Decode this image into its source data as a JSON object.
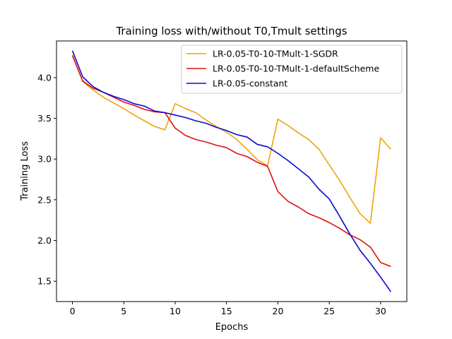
{
  "chart_data": {
    "type": "line",
    "title": "Training loss with/without T0,Tmult settings",
    "xlabel": "Epochs",
    "ylabel": "Training Loss",
    "xlim": [
      -1.55,
      32.55
    ],
    "ylim": [
      1.25,
      4.45
    ],
    "xticks": [
      0,
      5,
      10,
      15,
      20,
      25,
      30
    ],
    "yticks": [
      1.5,
      2.0,
      2.5,
      3.0,
      3.5,
      4.0
    ],
    "grid": false,
    "legend_position": "top-right",
    "x": [
      0,
      1,
      2,
      3,
      4,
      5,
      6,
      7,
      8,
      9,
      10,
      11,
      12,
      13,
      14,
      15,
      16,
      17,
      18,
      19,
      20,
      21,
      22,
      23,
      24,
      25,
      26,
      27,
      28,
      29,
      30,
      31
    ],
    "series": [
      {
        "name": "LR-0.05-T0-10-TMult-1-SGDR",
        "color": "#f0a30a",
        "values": [
          4.28,
          3.95,
          3.85,
          3.76,
          3.69,
          3.62,
          3.54,
          3.47,
          3.4,
          3.36,
          3.68,
          3.62,
          3.57,
          3.48,
          3.4,
          3.33,
          3.24,
          3.12,
          2.99,
          2.92,
          3.49,
          3.41,
          3.32,
          3.24,
          3.12,
          2.93,
          2.74,
          2.53,
          2.33,
          2.21,
          3.26,
          3.12
        ]
      },
      {
        "name": "LR-0.05-T0-10-TMult-1-defaultScheme",
        "color": "#e01010",
        "values": [
          4.27,
          3.96,
          3.87,
          3.82,
          3.76,
          3.7,
          3.66,
          3.61,
          3.58,
          3.57,
          3.38,
          3.29,
          3.24,
          3.21,
          3.17,
          3.14,
          3.07,
          3.03,
          2.96,
          2.91,
          2.6,
          2.48,
          2.41,
          2.33,
          2.28,
          2.22,
          2.15,
          2.07,
          2.01,
          1.92,
          1.73,
          1.68
        ]
      },
      {
        "name": "LR-0.05-constant",
        "color": "#0a0ad0",
        "values": [
          4.33,
          4.01,
          3.89,
          3.82,
          3.77,
          3.73,
          3.68,
          3.65,
          3.59,
          3.57,
          3.54,
          3.51,
          3.47,
          3.44,
          3.39,
          3.35,
          3.3,
          3.27,
          3.18,
          3.15,
          3.07,
          2.98,
          2.88,
          2.78,
          2.63,
          2.51,
          2.3,
          2.08,
          1.88,
          1.72,
          1.55,
          1.37
        ]
      }
    ]
  }
}
